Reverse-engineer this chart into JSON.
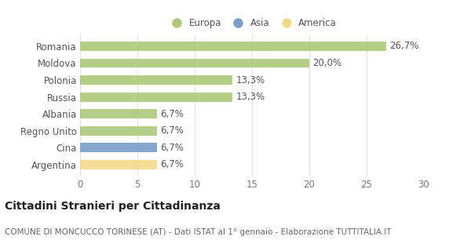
{
  "categories": [
    "Romania",
    "Moldova",
    "Polonia",
    "Russia",
    "Albania",
    "Regno Unito",
    "Cina",
    "Argentina"
  ],
  "values": [
    26.7,
    20.0,
    13.3,
    13.3,
    6.7,
    6.7,
    6.7,
    6.7
  ],
  "labels": [
    "26,7%",
    "20,0%",
    "13,3%",
    "13,3%",
    "6,7%",
    "6,7%",
    "6,7%",
    "6,7%"
  ],
  "colors": [
    "#adc97a",
    "#adc97a",
    "#adc97a",
    "#adc97a",
    "#adc97a",
    "#adc97a",
    "#7b9cc7",
    "#f5d98a"
  ],
  "color_europa": "#adc97a",
  "color_asia": "#7b9cc7",
  "color_america": "#f5d98a",
  "legend_labels": [
    "Europa",
    "Asia",
    "America"
  ],
  "xlim": [
    0,
    30
  ],
  "xticks": [
    0,
    5,
    10,
    15,
    20,
    25,
    30
  ],
  "title": "Cittadini Stranieri per Cittadinanza",
  "subtitle": "COMUNE DI MONCUCCO TORINESE (AT) - Dati ISTAT al 1° gennaio - Elaborazione TUTTITALIA.IT",
  "background_color": "#ffffff",
  "bar_height": 0.55,
  "grid_color": "#e0e0e0",
  "label_fontsize": 8.5,
  "tick_fontsize": 8.5,
  "title_fontsize": 10,
  "subtitle_fontsize": 7.5
}
